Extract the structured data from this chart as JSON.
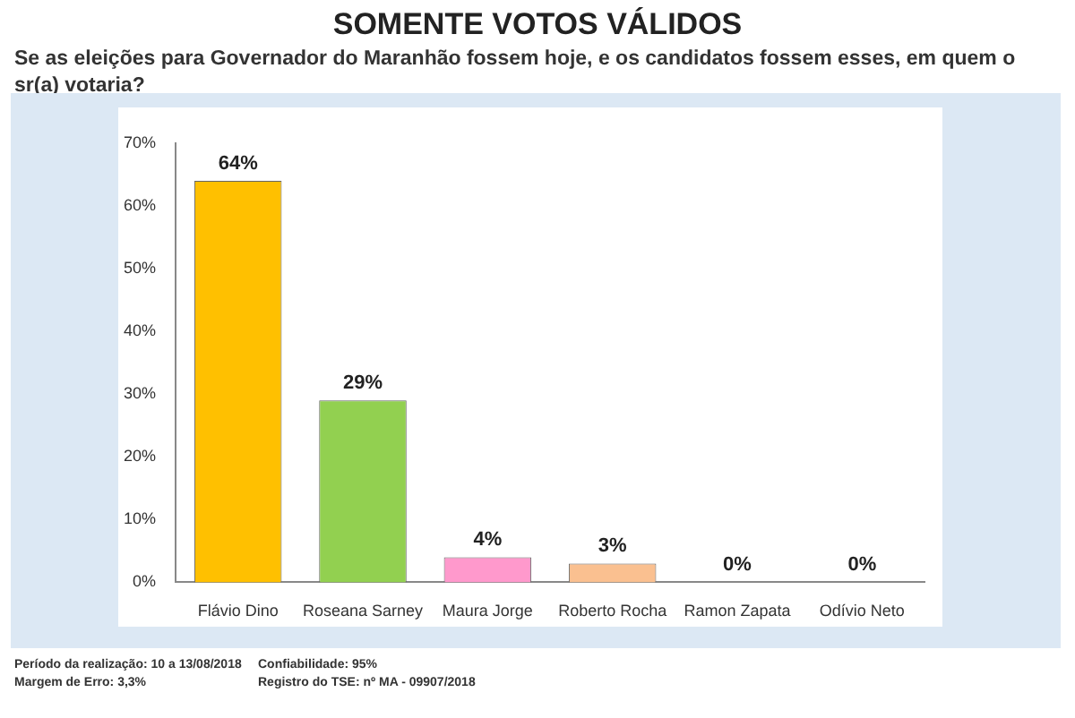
{
  "chart_data": {
    "type": "bar",
    "title": "SOMENTE VOTOS VÁLIDOS",
    "subtitle": "Se as eleições para Governador do Maranhão fossem hoje, e os candidatos fossem esses, em quem o sr(a) votaria?",
    "categories": [
      "Flávio Dino",
      "Roseana Sarney",
      "Maura Jorge",
      "Roberto Rocha",
      "Ramon Zapata",
      "Odívio Neto"
    ],
    "values": [
      64,
      29,
      4,
      3,
      0,
      0
    ],
    "colors": [
      "#ffc000",
      "#92d050",
      "#ff99cc",
      "#fac090",
      "#31859c",
      "#e46c0a"
    ],
    "value_labels": [
      "64%",
      "29%",
      "4%",
      "3%",
      "0%",
      "0%"
    ],
    "ylim": [
      0,
      70
    ],
    "yticks": [
      {
        "value": 0,
        "label": "0%"
      },
      {
        "value": 10,
        "label": "10%"
      },
      {
        "value": 20,
        "label": "20%"
      },
      {
        "value": 30,
        "label": "30%"
      },
      {
        "value": 40,
        "label": "40%"
      },
      {
        "value": 50,
        "label": "50%"
      },
      {
        "value": 60,
        "label": "60%"
      },
      {
        "value": 70,
        "label": "70%"
      }
    ],
    "grid": false,
    "legend": false,
    "annotations": [
      "Período da realização: 10 a 13/08/2018",
      "Margem de Erro: 3,3%",
      "Confiabilidade: 95%",
      "Registro do TSE: nº MA - 09907/2018"
    ]
  }
}
